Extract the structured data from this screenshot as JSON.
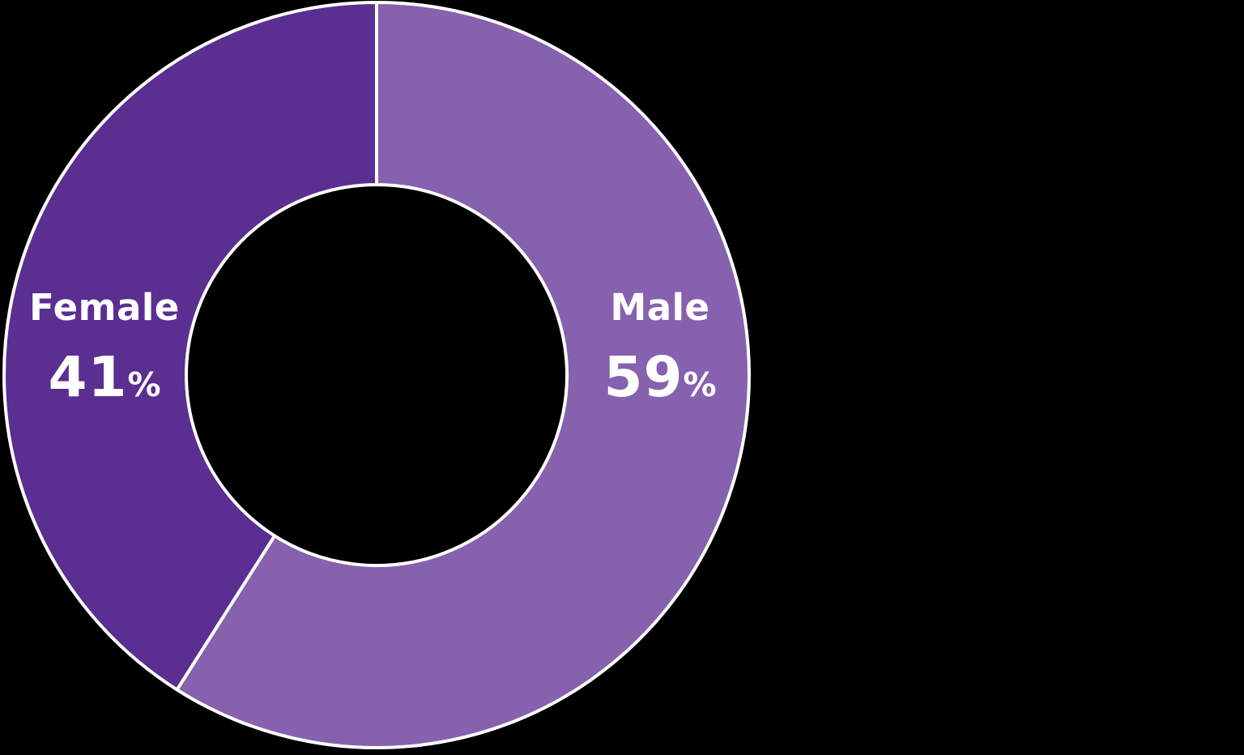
{
  "background_color": "#000000",
  "chart_data": {
    "type": "pie",
    "subtype": "donut",
    "title": "",
    "unit": "%",
    "direction": "clockwise",
    "start_angle_deg": 0,
    "donut_hole_ratio": 0.51,
    "separator_color": "#ffffff",
    "label_text_color": "#ffffff",
    "legend_position": "none",
    "labels_inside": true,
    "segments": [
      {
        "label": "Male",
        "value": 59,
        "value_label": "59",
        "color": "#8661ae"
      },
      {
        "label": "Female",
        "value": 41,
        "value_label": "41",
        "color": "#5b2e92"
      }
    ]
  }
}
